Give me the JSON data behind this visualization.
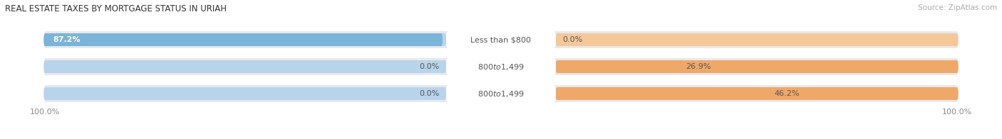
{
  "title": "REAL ESTATE TAXES BY MORTGAGE STATUS IN URIAH",
  "source": "Source: ZipAtlas.com",
  "rows": [
    {
      "label": "Less than $800",
      "without_mortgage": 87.2,
      "with_mortgage": 0.0
    },
    {
      "label": "$800 to $1,499",
      "without_mortgage": 0.0,
      "with_mortgage": 26.9
    },
    {
      "label": "$800 to $1,499",
      "without_mortgage": 0.0,
      "with_mortgage": 46.2
    }
  ],
  "max_val": 100.0,
  "color_without": "#7ab4d8",
  "color_with": "#f0a868",
  "color_without_light": "#b8d4ea",
  "color_with_light": "#f5c89a",
  "bar_bg": "#e8e8ec",
  "bg_figure": "#ffffff",
  "title_fontsize": 8.5,
  "source_fontsize": 7.5,
  "label_fontsize": 8,
  "pct_fontsize": 8,
  "legend_fontsize": 8,
  "axis_label_left": "100.0%",
  "axis_label_right": "100.0%"
}
